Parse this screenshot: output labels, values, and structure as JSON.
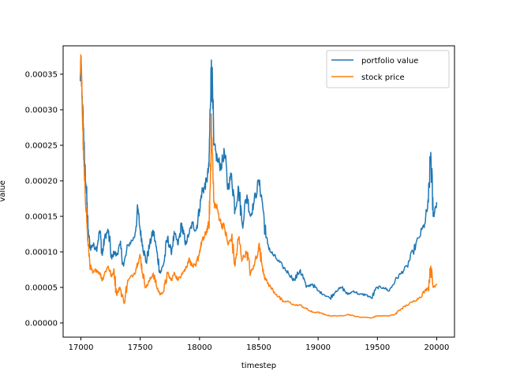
{
  "chart_data": {
    "type": "line",
    "title": "",
    "xlabel": "timestep",
    "ylabel": "value",
    "xlim": [
      16850,
      20150
    ],
    "ylim": [
      -2e-05,
      0.00039
    ],
    "xticks": [
      17000,
      17500,
      18000,
      18500,
      19000,
      19500,
      20000
    ],
    "xtick_labels": [
      "17000",
      "17500",
      "18000",
      "18500",
      "19000",
      "19500",
      "20000"
    ],
    "yticks": [
      0.0,
      5e-05,
      0.0001,
      0.00015,
      0.0002,
      0.00025,
      0.0003,
      0.00035
    ],
    "ytick_labels": [
      "0.00000",
      "0.00005",
      "0.00010",
      "0.00015",
      "0.00020",
      "0.00025",
      "0.00030",
      "0.00035"
    ],
    "grid": false,
    "legend_position": "top-right",
    "series": [
      {
        "name": "portfolio value",
        "color": "#1f77b4",
        "x": [
          16995,
          17000,
          17010,
          17020,
          17030,
          17045,
          17060,
          17080,
          17100,
          17130,
          17160,
          17180,
          17200,
          17230,
          17260,
          17280,
          17300,
          17330,
          17360,
          17400,
          17450,
          17480,
          17500,
          17520,
          17550,
          17580,
          17610,
          17640,
          17670,
          17700,
          17730,
          17760,
          17790,
          17820,
          17850,
          17880,
          17910,
          17940,
          17970,
          18000,
          18020,
          18040,
          18060,
          18080,
          18090,
          18100,
          18120,
          18150,
          18180,
          18210,
          18240,
          18270,
          18300,
          18330,
          18360,
          18400,
          18430,
          18460,
          18500,
          18530,
          18560,
          18600,
          18650,
          18700,
          18750,
          18800,
          18850,
          18900,
          18950,
          19000,
          19050,
          19100,
          19150,
          19200,
          19250,
          19300,
          19350,
          19400,
          19450,
          19500,
          19550,
          19600,
          19650,
          19700,
          19750,
          19800,
          19850,
          19900,
          19930,
          19950,
          19970,
          20000
        ],
        "y": [
          0.00034,
          0.00037,
          0.00032,
          0.00028,
          0.00023,
          0.00019,
          0.00013,
          0.000105,
          0.00011,
          0.000105,
          0.00013,
          9.5e-05,
          0.00012,
          0.00013,
          9e-05,
          0.0001,
          9.5e-05,
          0.00011,
          8e-05,
          0.00011,
          0.00012,
          0.00016,
          0.00013,
          0.00011,
          8.5e-05,
          0.00011,
          0.00013,
          0.0001,
          7e-05,
          8.5e-05,
          0.00012,
          0.0001,
          0.000125,
          0.00011,
          0.00014,
          0.00011,
          0.000125,
          0.00014,
          0.00013,
          0.00016,
          0.000185,
          0.00019,
          0.0002,
          0.00022,
          0.0003,
          0.00037,
          0.00025,
          0.00023,
          0.00022,
          0.00024,
          0.00019,
          0.00021,
          0.00016,
          0.00019,
          0.00014,
          0.00018,
          0.00015,
          0.00017,
          0.0002,
          0.00017,
          0.00012,
          0.0001,
          9e-05,
          8e-05,
          7e-05,
          6e-05,
          7.5e-05,
          5e-05,
          5.5e-05,
          4.5e-05,
          4e-05,
          3.5e-05,
          4.5e-05,
          5e-05,
          4e-05,
          4.5e-05,
          4e-05,
          4e-05,
          3.5e-05,
          5e-05,
          5e-05,
          4.5e-05,
          6e-05,
          7e-05,
          8e-05,
          0.0001,
          0.00012,
          0.00014,
          0.00017,
          0.00024,
          0.00015,
          0.00017
        ]
      },
      {
        "name": "stock price",
        "color": "#ff7f0e",
        "x": [
          16995,
          17000,
          17010,
          17020,
          17030,
          17045,
          17060,
          17080,
          17100,
          17130,
          17160,
          17180,
          17200,
          17230,
          17260,
          17280,
          17300,
          17330,
          17360,
          17400,
          17450,
          17480,
          17500,
          17520,
          17550,
          17580,
          17610,
          17640,
          17670,
          17700,
          17730,
          17760,
          17790,
          17820,
          17850,
          17880,
          17910,
          17940,
          17970,
          18000,
          18020,
          18040,
          18060,
          18080,
          18090,
          18100,
          18120,
          18150,
          18180,
          18210,
          18240,
          18270,
          18300,
          18330,
          18360,
          18400,
          18430,
          18460,
          18500,
          18530,
          18560,
          18600,
          18650,
          18700,
          18750,
          18800,
          18850,
          18900,
          18950,
          19000,
          19050,
          19100,
          19150,
          19200,
          19250,
          19300,
          19350,
          19400,
          19450,
          19500,
          19550,
          19600,
          19650,
          19700,
          19750,
          19800,
          19850,
          19900,
          19930,
          19950,
          19970,
          20000
        ],
        "y": [
          0.00035,
          0.00037,
          0.00031,
          0.00025,
          0.0002,
          0.00016,
          0.00011,
          8e-05,
          7e-05,
          7.5e-05,
          7e-05,
          6e-05,
          7e-05,
          8e-05,
          6.5e-05,
          7.5e-05,
          4e-05,
          5e-05,
          3e-05,
          6e-05,
          7e-05,
          8.5e-05,
          9.5e-05,
          7e-05,
          5e-05,
          6e-05,
          7e-05,
          5e-05,
          4e-05,
          4.5e-05,
          7e-05,
          6e-05,
          7e-05,
          6e-05,
          7e-05,
          7.5e-05,
          9e-05,
          8e-05,
          8e-05,
          0.0001,
          0.000115,
          0.00012,
          0.00013,
          0.00014,
          0.00019,
          0.00028,
          0.00017,
          0.00016,
          0.00014,
          0.000135,
          0.00011,
          0.00012,
          8e-05,
          0.00012,
          9e-05,
          0.0001,
          7e-05,
          8e-05,
          0.00011,
          8e-05,
          6e-05,
          5e-05,
          4e-05,
          3e-05,
          3e-05,
          2.5e-05,
          2.5e-05,
          2e-05,
          1.5e-05,
          1.5e-05,
          1.2e-05,
          1e-05,
          1e-05,
          1e-05,
          1.2e-05,
          1e-05,
          8e-06,
          8e-06,
          7e-06,
          1e-05,
          1e-05,
          1e-05,
          1.2e-05,
          2e-05,
          2.5e-05,
          3e-05,
          3.5e-05,
          4.5e-05,
          5e-05,
          8e-05,
          5e-05,
          5.5e-05
        ]
      }
    ]
  }
}
